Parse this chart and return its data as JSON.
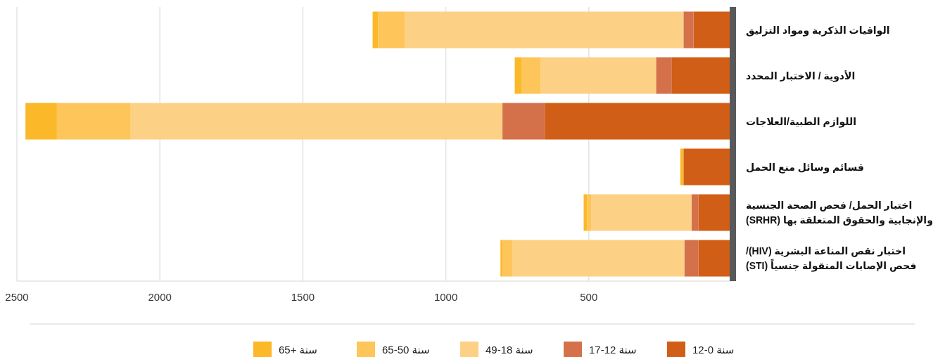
{
  "chart_data": {
    "type": "bar",
    "orientation": "horizontal",
    "stacked": true,
    "categories": [
      "الواقيات الذكرية ومواد التزليق",
      "الأدوية / الاختبار المحدد",
      "اللوازم الطبية/العلاجات",
      "قسائم وسائل منع الحمل",
      "اختبار الحمل/ فحص الصحة الجنسية\nوالإنجابية والحقوق المتعلقة بها (SRHR)",
      "اختبار نقص المناعة البشرية (HIV)/\nفحص الإصابات المنقولة جنسياً (STI)"
    ],
    "series": [
      {
        "name": "سنة 0-12",
        "color": "#d15e17",
        "values": [
          134,
          211,
          654,
          169,
          117,
          117
        ]
      },
      {
        "name": "سنة 12-17",
        "color": "#d4714a",
        "values": [
          35,
          54,
          148,
          0,
          24,
          49
        ]
      },
      {
        "name": "سنة 18-49",
        "color": "#fdd185",
        "values": [
          975,
          404,
          1300,
          0,
          351,
          600
        ]
      },
      {
        "name": "سنة 50-65",
        "color": "#fdc55a",
        "values": [
          93,
          65,
          258,
          0,
          14,
          35
        ]
      },
      {
        "name": "سنة +65",
        "color": "#fbb829",
        "values": [
          19,
          25,
          110,
          11,
          12,
          8
        ]
      }
    ],
    "xlim": [
      2500,
      0
    ],
    "xticks": [
      2500,
      2000,
      1500,
      1000,
      500
    ],
    "grid": "x",
    "legend": "bottom"
  }
}
